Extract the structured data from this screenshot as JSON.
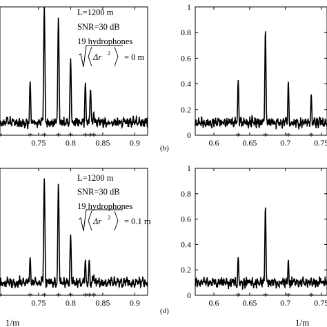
{
  "chart_data": [
    {
      "type": "line",
      "panel": "a",
      "x_ticks": [
        "0.75",
        "0.8",
        "0.85",
        "0.9"
      ],
      "x_tick_values": [
        0.75,
        0.8,
        0.85,
        0.9
      ],
      "xlim": [
        0.69,
        0.92
      ],
      "ylim": [
        0,
        1
      ],
      "annotation": [
        "L=1200 m",
        "SNR=30 dB",
        "19 hydrophones"
      ],
      "rms_label": "= 0 m",
      "peaks": {
        "x": [
          0.737,
          0.759,
          0.781,
          0.8,
          0.823,
          0.831,
          0.836
        ],
        "y": [
          0.42,
          1.0,
          0.92,
          0.6,
          0.41,
          0.36,
          0.18
        ]
      },
      "markers_x": [
        0.69,
        0.737,
        0.759,
        0.781,
        0.8,
        0.823,
        0.831,
        0.836
      ]
    },
    {
      "type": "line",
      "panel": "b",
      "label": "(b)",
      "x_ticks": [
        "0.6",
        "0.65",
        "0.7",
        "0.75"
      ],
      "x_tick_values": [
        0.6,
        0.65,
        0.7,
        0.75
      ],
      "y_ticks": [
        "0",
        "0.2",
        "0.4",
        "0.6",
        "0.8",
        "1"
      ],
      "y_tick_values": [
        0,
        0.2,
        0.4,
        0.6,
        0.8,
        1
      ],
      "xlim": [
        0.574,
        0.758
      ],
      "ylim": [
        0,
        1
      ],
      "peaks": {
        "x": [
          0.634,
          0.672,
          0.704,
          0.736
        ],
        "y": [
          0.43,
          0.82,
          0.42,
          0.32
        ]
      },
      "markers_x": [
        0.634,
        0.672,
        0.704,
        0.736
      ]
    },
    {
      "type": "line",
      "panel": "c",
      "x_ticks": [
        "0.75",
        "0.8",
        "0.85",
        "0.9"
      ],
      "x_tick_values": [
        0.75,
        0.8,
        0.85,
        0.9
      ],
      "xlim": [
        0.69,
        0.92
      ],
      "ylim": [
        0,
        1
      ],
      "annotation": [
        "L=1200 m",
        "SNR=30 dB",
        "19 hydrophones"
      ],
      "rms_label": "= 0.1 m",
      "peaks": {
        "x": [
          0.737,
          0.759,
          0.781,
          0.8,
          0.823,
          0.829,
          0.836
        ],
        "y": [
          0.3,
          0.92,
          0.88,
          0.48,
          0.28,
          0.28,
          0.16
        ]
      },
      "markers_x": [
        0.69,
        0.737,
        0.759,
        0.781,
        0.8,
        0.823,
        0.829,
        0.836
      ]
    },
    {
      "type": "line",
      "panel": "d",
      "label": "(d)",
      "x_ticks": [
        "0.6",
        "0.65",
        "0.7",
        "0.75"
      ],
      "x_tick_values": [
        0.6,
        0.65,
        0.7,
        0.75
      ],
      "y_ticks": [
        "0",
        "0.2",
        "0.4",
        "0.6",
        "0.8",
        "1"
      ],
      "y_tick_values": [
        0,
        0.2,
        0.4,
        0.6,
        0.8,
        1
      ],
      "xlim": [
        0.574,
        0.758
      ],
      "ylim": [
        0,
        1
      ],
      "peaks": {
        "x": [
          0.634,
          0.672,
          0.704,
          0.736
        ],
        "y": [
          0.3,
          0.7,
          0.28,
          0.14
        ]
      },
      "markers_x": [
        0.634,
        0.672,
        0.704,
        0.736
      ]
    }
  ],
  "x_unit_left": "1/m",
  "x_unit_right": "1/m"
}
